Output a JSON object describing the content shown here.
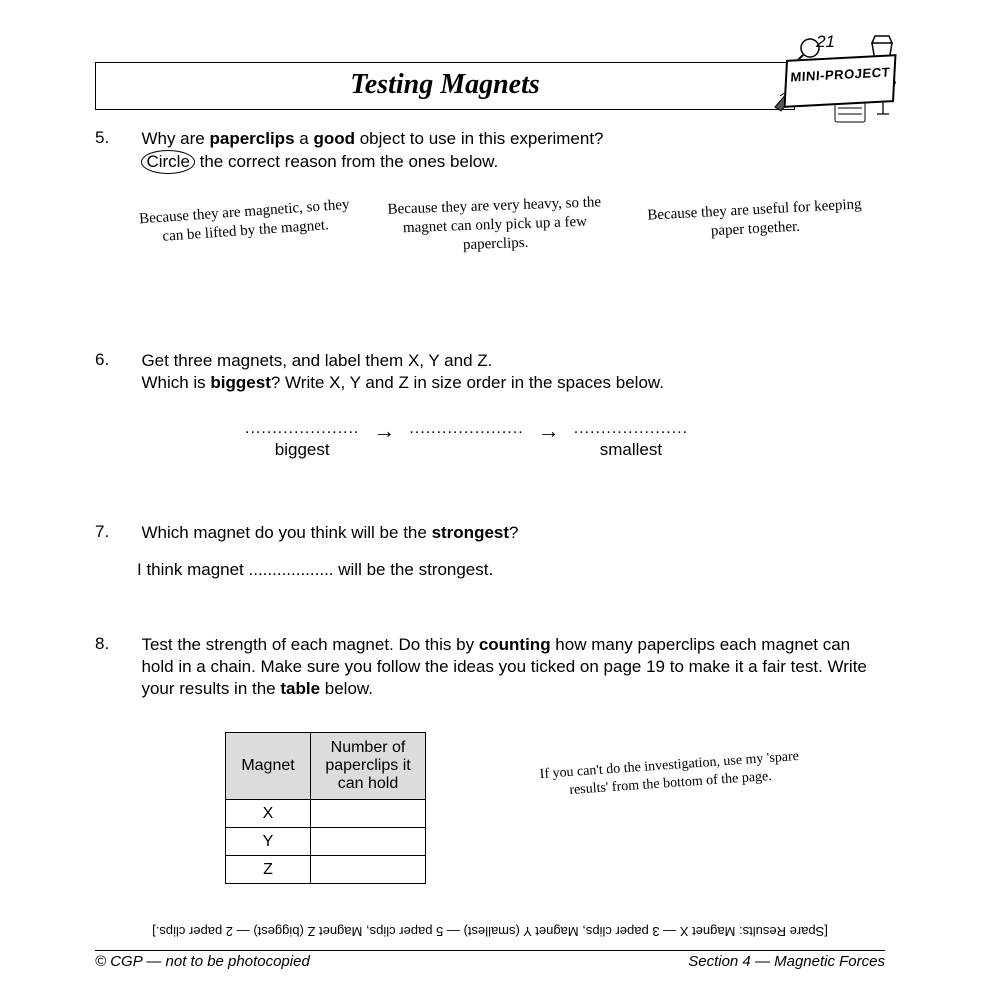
{
  "page_number": "21",
  "title": "Testing Magnets",
  "badge": "MINI-PROJECT",
  "q5": {
    "num": "5.",
    "line1": "Why are <b>paperclips</b> a <b>good</b> object to use in this experiment?",
    "line2_pre": "",
    "circle_word": "Circle",
    "line2_post": " the correct reason from the ones below."
  },
  "options": {
    "a": "Because they are magnetic, so they can be lifted by the magnet.",
    "b": "Because they are very heavy, so the magnet can only pick up a few paperclips.",
    "c": "Because they are useful for keeping paper together."
  },
  "q6": {
    "num": "6.",
    "text": "Get three magnets, and label them X, Y and Z.<br>Which is <b>biggest</b>?  Write X, Y and Z in size order in the spaces below."
  },
  "sizeorder": {
    "dots": ".....................",
    "arrow": "→",
    "biggest": "biggest",
    "smallest": "smallest"
  },
  "q7": {
    "num": "7.",
    "text": "Which magnet do you think will be the <b>strongest</b>?",
    "answer": "I think magnet .................. will be the strongest."
  },
  "q8": {
    "num": "8.",
    "text": "Test the strength of each magnet.  Do this by <b>counting</b> how many paperclips each magnet can hold in a chain.  Make sure you follow the ideas you ticked on page 19 to make it a fair test.  Write your results in the <b>table</b> below."
  },
  "table": {
    "h1": "Magnet",
    "h2": "Number of paperclips it can hold",
    "rows": [
      "X",
      "Y",
      "Z"
    ],
    "col1_width": 85,
    "col2_width": 115,
    "header_bg": "#dcdcdc"
  },
  "note": "If you can't do the investigation, use my 'spare results' from the bottom of the page.",
  "spare": "[Spare Results:  Magnet X — 3 paper clips,  Magnet Y (smallest) — 5 paper clips,  Magnet Z (biggest) — 2 paper clips.]",
  "footer": {
    "left": "© CGP — not to be photocopied",
    "right": "Section 4 — Magnetic Forces"
  }
}
